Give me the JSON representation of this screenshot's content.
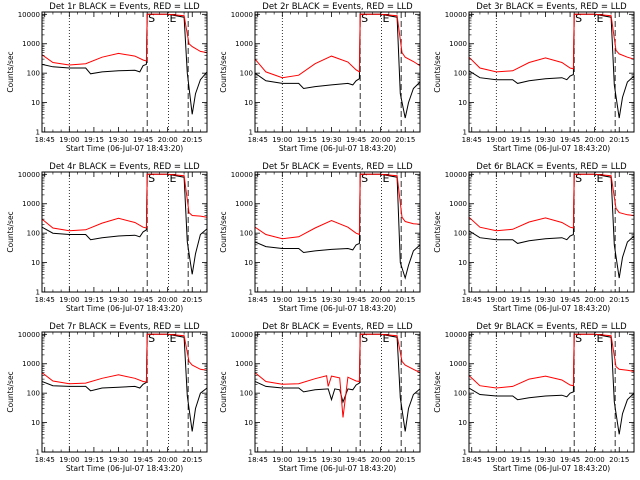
{
  "x_ticks": [
    "18:45",
    "19:00",
    "19:15",
    "19:30",
    "19:45",
    "20:00",
    "20:15"
  ],
  "x_tick_values_min": [
    0,
    15,
    30,
    45,
    60,
    75,
    90
  ],
  "xlim_min": [
    -1.67,
    99
  ],
  "y_ticks": [
    "1",
    "10",
    "100",
    "1000",
    "10000"
  ],
  "y_tick_values": [
    1,
    10,
    100,
    1000,
    10000
  ],
  "ylim": [
    1,
    12000
  ],
  "y_scale": "log",
  "ylabel": "Counts/sec",
  "xlabel": "Start Time (06-Jul-07 18:43:20)",
  "markers": [
    {
      "label": "S",
      "x_min": 62.5,
      "style": "dashed"
    },
    {
      "label": "E",
      "x_min": 75.5,
      "style": "dotted"
    },
    {
      "label": "",
      "x_min": 87.5,
      "style": "dashed"
    }
  ],
  "extra_vline": {
    "x_min": 15,
    "style": "dotted"
  },
  "colors": {
    "events": "#000000",
    "lld": "#ff0000",
    "axes": "#000000"
  },
  "chart_data": [
    {
      "type": "line",
      "title": "Det 1r BLACK = Events, RED = LLD",
      "series": [
        {
          "name": "Events",
          "x": [
            -1.67,
            5,
            15,
            25,
            28,
            35,
            45,
            55,
            58,
            60,
            62,
            62.5,
            70,
            75,
            80,
            85,
            87,
            90,
            92,
            95,
            99
          ],
          "y": [
            200,
            165,
            150,
            150,
            95,
            110,
            120,
            125,
            110,
            180,
            200,
            10000,
            10000,
            10000,
            9000,
            8000,
            100,
            4,
            20,
            60,
            110
          ]
        },
        {
          "name": "LLD",
          "x": [
            -1.67,
            5,
            15,
            25,
            35,
            45,
            55,
            60,
            62,
            62.5,
            75,
            85,
            88,
            90,
            95,
            99
          ],
          "y": [
            420,
            230,
            190,
            210,
            350,
            470,
            380,
            280,
            260,
            10000,
            10000,
            9000,
            1000,
            800,
            550,
            500
          ]
        }
      ]
    },
    {
      "type": "line",
      "title": "Det 2r BLACK = Events, RED = LLD",
      "series": [
        {
          "name": "Events",
          "x": [
            -1.67,
            5,
            15,
            25,
            28,
            35,
            45,
            55,
            58,
            60,
            62,
            62.5,
            70,
            75,
            80,
            85,
            87,
            90,
            92,
            95,
            99
          ],
          "y": [
            100,
            55,
            45,
            45,
            30,
            35,
            40,
            45,
            40,
            55,
            65,
            10000,
            10000,
            10000,
            9000,
            8000,
            20,
            3,
            10,
            30,
            50
          ]
        },
        {
          "name": "LLD",
          "x": [
            -1.67,
            5,
            15,
            25,
            35,
            45,
            55,
            60,
            62,
            62.5,
            75,
            85,
            88,
            90,
            95,
            99
          ],
          "y": [
            300,
            110,
            70,
            85,
            210,
            380,
            240,
            130,
            110,
            10000,
            10000,
            9000,
            500,
            350,
            250,
            180
          ]
        }
      ]
    },
    {
      "type": "line",
      "title": "Det 3r BLACK = Events, RED = LLD",
      "series": [
        {
          "name": "Events",
          "x": [
            -1.67,
            5,
            15,
            25,
            28,
            35,
            45,
            55,
            58,
            60,
            62,
            62.5,
            70,
            75,
            80,
            85,
            87,
            90,
            92,
            95,
            99
          ],
          "y": [
            120,
            70,
            60,
            60,
            45,
            55,
            65,
            70,
            60,
            80,
            90,
            10000,
            10000,
            10000,
            9000,
            8000,
            40,
            3,
            15,
            50,
            80
          ]
        },
        {
          "name": "LLD",
          "x": [
            -1.67,
            5,
            15,
            25,
            35,
            45,
            55,
            60,
            62,
            62.5,
            75,
            85,
            88,
            90,
            95,
            99
          ],
          "y": [
            350,
            150,
            110,
            120,
            230,
            330,
            230,
            150,
            140,
            10000,
            10000,
            9000,
            600,
            450,
            350,
            300
          ]
        }
      ]
    },
    {
      "type": "line",
      "title": "Det 4r BLACK = Events, RED = LLD",
      "series": [
        {
          "name": "Events",
          "x": [
            -1.67,
            5,
            15,
            25,
            28,
            35,
            45,
            55,
            58,
            60,
            62,
            62.5,
            70,
            75,
            80,
            85,
            87,
            90,
            92,
            95,
            99
          ],
          "y": [
            160,
            100,
            90,
            90,
            60,
            70,
            80,
            85,
            75,
            110,
            130,
            10000,
            10000,
            10000,
            9000,
            8000,
            50,
            4,
            20,
            90,
            140
          ]
        },
        {
          "name": "LLD",
          "x": [
            -1.67,
            5,
            15,
            25,
            35,
            45,
            55,
            60,
            62,
            62.5,
            75,
            85,
            88,
            90,
            95,
            99
          ],
          "y": [
            300,
            150,
            120,
            130,
            220,
            320,
            230,
            160,
            150,
            10000,
            10000,
            9000,
            500,
            400,
            380,
            350
          ]
        }
      ]
    },
    {
      "type": "line",
      "title": "Det 5r BLACK = Events, RED = LLD",
      "series": [
        {
          "name": "Events",
          "x": [
            -1.67,
            5,
            15,
            25,
            28,
            35,
            45,
            55,
            58,
            60,
            62,
            62.5,
            70,
            75,
            80,
            85,
            87,
            90,
            92,
            95,
            99
          ],
          "y": [
            50,
            35,
            30,
            30,
            22,
            25,
            28,
            30,
            27,
            40,
            45,
            10000,
            10000,
            10000,
            9000,
            8000,
            10,
            3,
            8,
            25,
            40
          ]
        },
        {
          "name": "LLD",
          "x": [
            -1.67,
            5,
            15,
            25,
            35,
            45,
            55,
            60,
            62,
            62.5,
            75,
            85,
            88,
            90,
            95,
            99
          ],
          "y": [
            160,
            90,
            65,
            75,
            150,
            270,
            160,
            100,
            90,
            10000,
            10000,
            9000,
            350,
            250,
            210,
            200
          ]
        }
      ]
    },
    {
      "type": "line",
      "title": "Det 6r BLACK = Events, RED = LLD",
      "series": [
        {
          "name": "Events",
          "x": [
            -1.67,
            5,
            15,
            25,
            28,
            35,
            45,
            55,
            58,
            60,
            62,
            62.5,
            70,
            75,
            80,
            85,
            87,
            90,
            92,
            95,
            99
          ],
          "y": [
            120,
            70,
            60,
            60,
            45,
            55,
            65,
            70,
            60,
            80,
            90,
            10000,
            10000,
            10000,
            9000,
            8000,
            40,
            3,
            15,
            50,
            80
          ]
        },
        {
          "name": "LLD",
          "x": [
            -1.67,
            5,
            15,
            25,
            35,
            45,
            55,
            60,
            62,
            62.5,
            75,
            85,
            88,
            90,
            95,
            99
          ],
          "y": [
            350,
            160,
            120,
            135,
            240,
            330,
            230,
            160,
            150,
            10000,
            10000,
            9000,
            700,
            500,
            420,
            400
          ]
        }
      ]
    },
    {
      "type": "line",
      "title": "Det 7r BLACK = Events, RED = LLD",
      "series": [
        {
          "name": "Events",
          "x": [
            -1.67,
            5,
            15,
            25,
            28,
            35,
            45,
            55,
            58,
            60,
            62,
            62.5,
            70,
            75,
            80,
            85,
            87,
            90,
            92,
            95,
            99
          ],
          "y": [
            250,
            180,
            170,
            170,
            120,
            150,
            160,
            170,
            150,
            200,
            230,
            10000,
            10000,
            10000,
            9000,
            8000,
            80,
            5,
            30,
            100,
            150
          ]
        },
        {
          "name": "LLD",
          "x": [
            -1.67,
            5,
            15,
            25,
            35,
            45,
            55,
            60,
            62,
            62.5,
            75,
            85,
            88,
            90,
            95,
            99
          ],
          "y": [
            500,
            260,
            210,
            220,
            320,
            420,
            320,
            250,
            240,
            10000,
            10000,
            9000,
            1200,
            900,
            650,
            600
          ]
        }
      ]
    },
    {
      "type": "line",
      "title": "Det 8r BLACK = Events, RED = LLD",
      "series": [
        {
          "name": "Events",
          "x": [
            -1.67,
            5,
            15,
            25,
            28,
            35,
            43,
            45,
            47,
            50,
            52,
            55,
            58,
            60,
            62,
            62.5,
            70,
            75,
            80,
            85,
            87,
            90,
            92,
            95,
            99
          ],
          "y": [
            250,
            170,
            150,
            150,
            110,
            130,
            140,
            60,
            140,
            130,
            50,
            140,
            130,
            190,
            220,
            10000,
            10000,
            10000,
            9000,
            8000,
            70,
            5,
            30,
            90,
            140
          ]
        },
        {
          "name": "LLD",
          "x": [
            -1.67,
            5,
            15,
            25,
            35,
            42,
            43,
            45,
            50,
            52,
            55,
            60,
            62,
            62.5,
            75,
            85,
            88,
            90,
            95,
            99
          ],
          "y": [
            500,
            250,
            200,
            210,
            310,
            390,
            170,
            380,
            330,
            15,
            350,
            260,
            250,
            10000,
            10000,
            9000,
            1200,
            900,
            650,
            500
          ]
        }
      ]
    },
    {
      "type": "line",
      "title": "Det 9r BLACK = Events, RED = LLD",
      "series": [
        {
          "name": "Events",
          "x": [
            -1.67,
            5,
            15,
            25,
            28,
            35,
            45,
            55,
            58,
            60,
            62,
            62.5,
            70,
            75,
            80,
            85,
            87,
            90,
            92,
            95,
            99
          ],
          "y": [
            150,
            90,
            80,
            80,
            60,
            70,
            80,
            85,
            75,
            100,
            110,
            10000,
            10000,
            10000,
            9000,
            8000,
            50,
            4,
            20,
            60,
            100
          ]
        },
        {
          "name": "LLD",
          "x": [
            -1.67,
            5,
            15,
            25,
            35,
            45,
            55,
            60,
            62,
            62.5,
            75,
            85,
            88,
            90,
            95,
            99
          ],
          "y": [
            400,
            180,
            150,
            170,
            300,
            380,
            280,
            190,
            180,
            10000,
            10000,
            9000,
            800,
            650,
            600,
            550
          ]
        }
      ]
    }
  ]
}
